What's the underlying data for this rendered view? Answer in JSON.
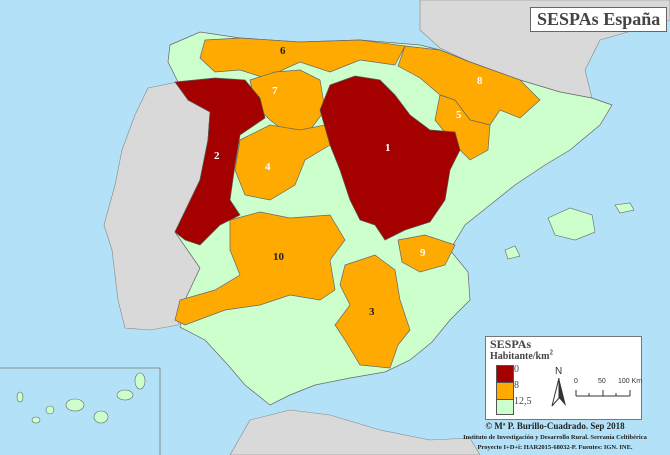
{
  "title": "SESPAs España",
  "colors": {
    "sea": "#b3e1f7",
    "land_other": "#d9d9d9",
    "low": "#a50000",
    "mid": "#ffaa00",
    "high": "#ccffcc"
  },
  "regions": [
    {
      "label": "1",
      "class": "0"
    },
    {
      "label": "2",
      "class": "0"
    },
    {
      "label": "3",
      "class": "8"
    },
    {
      "label": "4",
      "class": "8"
    },
    {
      "label": "5",
      "class": "8"
    },
    {
      "label": "6",
      "class": "8"
    },
    {
      "label": "7",
      "class": "8"
    },
    {
      "label": "8",
      "class": "8"
    },
    {
      "label": "9",
      "class": "8"
    },
    {
      "label": "10",
      "class": "8"
    }
  ],
  "legend": {
    "title": "SESPAs",
    "unit": "Habitante/km",
    "unit_sup": "2",
    "breaks": [
      "0",
      "8",
      "12,5"
    ]
  },
  "scale": {
    "north": "N",
    "ticks": [
      "0",
      "50",
      "100 Km"
    ]
  },
  "credits": {
    "line1": "© Mª P. Burillo-Cuadrado. Sep 2018",
    "line2": "Instituto de Investigación y Desarrollo Rural. Serranía Celtibérica",
    "line3": "Proyecto I+D+i: HAR2015-68032-P. Fuentes: IGN. INE."
  }
}
